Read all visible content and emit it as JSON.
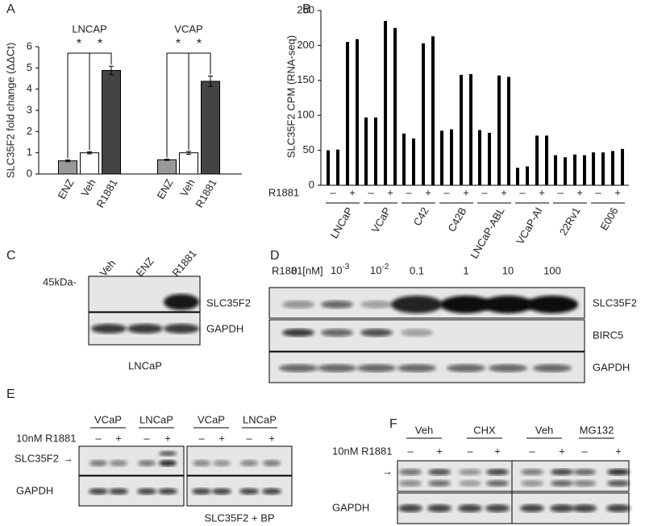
{
  "panel_labels": [
    "A",
    "B",
    "C",
    "D",
    "E",
    "F"
  ],
  "chart_data": [
    {
      "type": "grouped-bar",
      "y_label": "SLC35F2 fold change (ΔΔCt)",
      "significance": "*",
      "categories": [
        "LNCAP",
        "VCAP"
      ],
      "series": [
        {
          "name": "ENZ",
          "color": "#999999",
          "values": [
            0.62,
            0.67
          ],
          "errors": [
            0.04,
            0.03
          ]
        },
        {
          "name": "Veh",
          "color": "#ffffff",
          "values": [
            1.0,
            1.0
          ],
          "errors": [
            0.05,
            0.07
          ]
        },
        {
          "name": "R1881",
          "color": "#444444",
          "values": [
            4.88,
            4.37
          ],
          "errors": [
            0.2,
            0.25
          ]
        }
      ],
      "ylim": [
        0,
        6
      ],
      "yticks": [
        0,
        1,
        2,
        3,
        4,
        5,
        6
      ]
    },
    {
      "type": "grouped-bar",
      "y_label": "SLC35F2 CPM (RNA-seq)",
      "row_label": "R1881",
      "treatment": [
        "–",
        "+"
      ],
      "color": "#000000",
      "groups": [
        {
          "name": "LNCaP",
          "values": [
            50,
            51,
            205,
            209
          ]
        },
        {
          "name": "VCaP",
          "values": [
            97,
            97,
            235,
            225
          ]
        },
        {
          "name": "C42",
          "values": [
            74,
            67,
            203,
            213
          ]
        },
        {
          "name": "C42B",
          "values": [
            78,
            80,
            158,
            159
          ]
        },
        {
          "name": "LNCaP-ABL",
          "values": [
            79,
            75,
            157,
            155
          ]
        },
        {
          "name": "VCaP-AI",
          "values": [
            25,
            27,
            71,
            71
          ]
        },
        {
          "name": "22Rv1",
          "values": [
            43,
            40,
            44,
            43
          ]
        },
        {
          "name": "E006",
          "values": [
            47,
            47,
            49,
            52
          ]
        }
      ],
      "ylim": [
        0,
        250
      ],
      "yticks": [
        0,
        50,
        100,
        150,
        200,
        250
      ]
    }
  ],
  "blots": {
    "C": {
      "lanes": [
        "Veh",
        "ENZ",
        "R1881"
      ],
      "marker": "45kDa-",
      "rows": [
        "SLC35F2",
        "GAPDH"
      ],
      "cell_line": "LNCaP"
    },
    "D": {
      "treatment": "R1881[nM]",
      "doses": [
        "0",
        {
          "base": "10",
          "exp": "-3"
        },
        {
          "base": "10",
          "exp": "-2"
        },
        "0.1",
        "1",
        "10",
        "100"
      ],
      "rows": [
        "SLC35F2",
        "BIRC5",
        "GAPDH"
      ]
    },
    "E": {
      "groups": [
        "VCaP",
        "LNCaP",
        "VCaP",
        "LNCaP"
      ],
      "treatment": "10nM R1881",
      "signs": [
        "–",
        "+"
      ],
      "rows": [
        "SLC35F2",
        "GAPDH"
      ],
      "arrow": "→",
      "note": "SLC35F2 + BP"
    },
    "F": {
      "groups": [
        "Veh",
        "CHX",
        "Veh",
        "MG132"
      ],
      "treatment": "10nM R1881",
      "signs": [
        "–",
        "+"
      ],
      "arrow": "→",
      "rows": [
        "GAPDH"
      ]
    }
  }
}
